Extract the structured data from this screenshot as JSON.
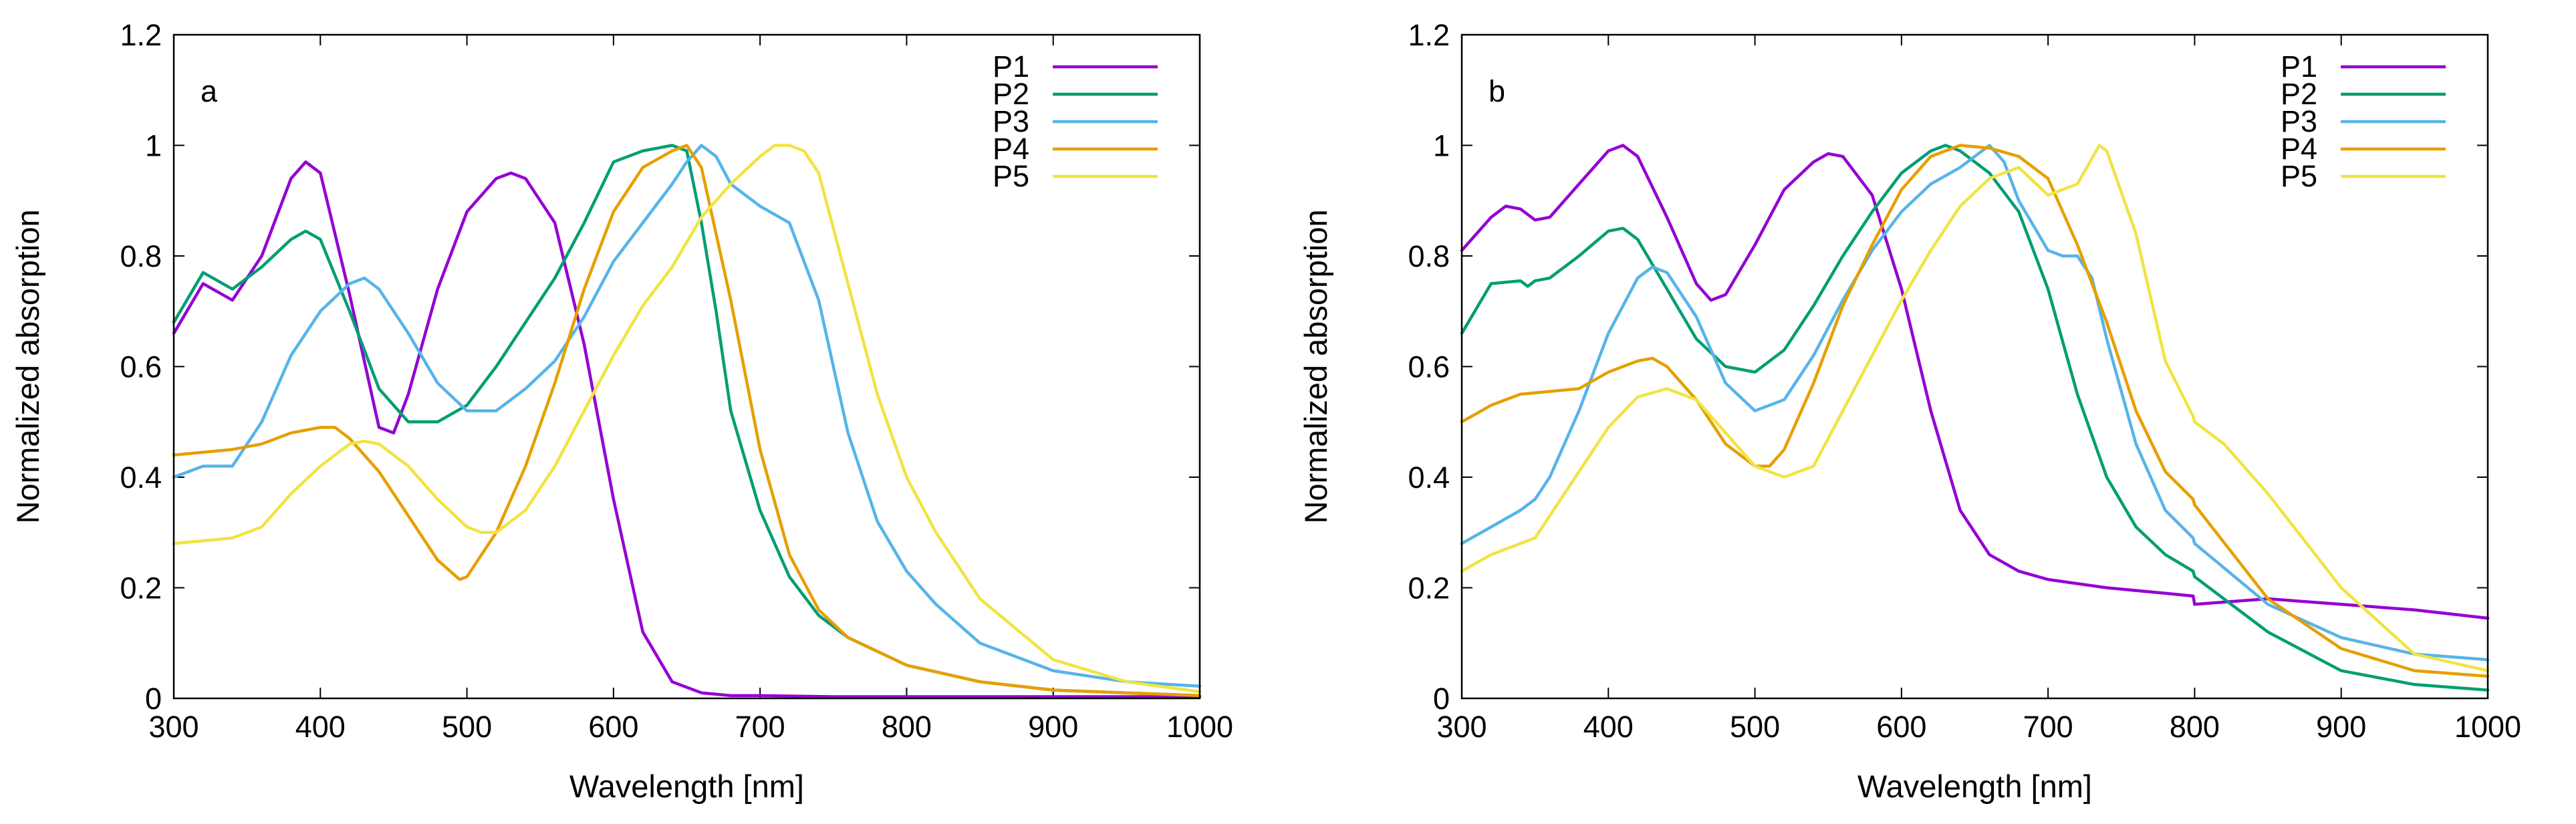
{
  "chart_data": [
    {
      "type": "line",
      "panel_label": "a",
      "xlabel": "Wavelength [nm]",
      "ylabel": "Normalized absorption",
      "xlim": [
        300,
        1000
      ],
      "ylim": [
        0,
        1.2
      ],
      "xticks": [
        "300",
        "400",
        "500",
        "600",
        "700",
        "800",
        "900",
        "1000"
      ],
      "yticks": [
        "0",
        "0.2",
        "0.4",
        "0.6",
        "0.8",
        "1",
        "1.2"
      ],
      "legend_position": "top-right",
      "series": [
        {
          "name": "P1",
          "color": "#9400d3",
          "x": [
            300,
            320,
            340,
            360,
            380,
            390,
            400,
            420,
            440,
            450,
            460,
            480,
            500,
            520,
            530,
            540,
            560,
            580,
            600,
            620,
            640,
            660,
            680,
            700,
            750,
            800,
            900,
            1000
          ],
          "y": [
            0.66,
            0.75,
            0.72,
            0.8,
            0.94,
            0.97,
            0.95,
            0.73,
            0.49,
            0.48,
            0.55,
            0.74,
            0.88,
            0.94,
            0.95,
            0.94,
            0.86,
            0.64,
            0.36,
            0.12,
            0.03,
            0.01,
            0.005,
            0.005,
            0.003,
            0.003,
            0.003,
            0.003
          ]
        },
        {
          "name": "P2",
          "color": "#009e73",
          "x": [
            300,
            320,
            340,
            360,
            380,
            390,
            400,
            420,
            440,
            460,
            480,
            500,
            520,
            540,
            560,
            580,
            600,
            620,
            640,
            650,
            660,
            670,
            680,
            700,
            720,
            740,
            760,
            800,
            850,
            900,
            1000
          ],
          "y": [
            0.68,
            0.77,
            0.74,
            0.78,
            0.83,
            0.845,
            0.83,
            0.7,
            0.56,
            0.5,
            0.5,
            0.53,
            0.6,
            0.68,
            0.76,
            0.86,
            0.97,
            0.99,
            1.0,
            0.99,
            0.86,
            0.7,
            0.52,
            0.34,
            0.22,
            0.15,
            0.11,
            0.06,
            0.03,
            0.015,
            0.005
          ]
        },
        {
          "name": "P3",
          "color": "#56b4e9",
          "x": [
            300,
            320,
            340,
            360,
            380,
            400,
            420,
            430,
            440,
            460,
            480,
            500,
            520,
            540,
            560,
            580,
            600,
            620,
            640,
            650,
            660,
            670,
            680,
            700,
            720,
            740,
            760,
            780,
            800,
            820,
            850,
            900,
            950,
            1000
          ],
          "y": [
            0.4,
            0.42,
            0.42,
            0.5,
            0.62,
            0.7,
            0.75,
            0.76,
            0.74,
            0.66,
            0.57,
            0.52,
            0.52,
            0.56,
            0.61,
            0.69,
            0.79,
            0.86,
            0.93,
            0.97,
            1.0,
            0.98,
            0.93,
            0.89,
            0.86,
            0.72,
            0.48,
            0.32,
            0.23,
            0.17,
            0.1,
            0.05,
            0.03,
            0.022
          ]
        },
        {
          "name": "P4",
          "color": "#e69f00",
          "x": [
            300,
            320,
            340,
            360,
            380,
            400,
            410,
            420,
            440,
            460,
            480,
            495,
            500,
            520,
            540,
            560,
            580,
            600,
            620,
            640,
            650,
            660,
            680,
            700,
            720,
            740,
            760,
            800,
            850,
            900,
            1000
          ],
          "y": [
            0.44,
            0.445,
            0.45,
            0.46,
            0.48,
            0.49,
            0.49,
            0.47,
            0.41,
            0.33,
            0.25,
            0.215,
            0.22,
            0.3,
            0.42,
            0.57,
            0.74,
            0.88,
            0.96,
            0.99,
            1.0,
            0.96,
            0.72,
            0.45,
            0.26,
            0.16,
            0.11,
            0.06,
            0.03,
            0.015,
            0.005
          ]
        },
        {
          "name": "P5",
          "color": "#f0e442",
          "x": [
            300,
            320,
            340,
            360,
            380,
            400,
            420,
            430,
            440,
            460,
            480,
            500,
            510,
            520,
            540,
            560,
            580,
            600,
            620,
            640,
            660,
            680,
            700,
            710,
            720,
            730,
            740,
            760,
            780,
            800,
            820,
            850,
            900,
            950,
            1000
          ],
          "y": [
            0.28,
            0.285,
            0.29,
            0.31,
            0.37,
            0.42,
            0.46,
            0.465,
            0.46,
            0.42,
            0.36,
            0.31,
            0.3,
            0.3,
            0.34,
            0.42,
            0.52,
            0.62,
            0.71,
            0.78,
            0.87,
            0.93,
            0.98,
            1.0,
            1.0,
            0.99,
            0.95,
            0.75,
            0.55,
            0.4,
            0.3,
            0.18,
            0.07,
            0.03,
            0.012
          ]
        }
      ]
    },
    {
      "type": "line",
      "panel_label": "b",
      "xlabel": "Wavelength [nm]",
      "ylabel": "Normalized absorption",
      "xlim": [
        300,
        1000
      ],
      "ylim": [
        0,
        1.2
      ],
      "xticks": [
        "300",
        "400",
        "500",
        "600",
        "700",
        "800",
        "900",
        "1000"
      ],
      "yticks": [
        "0",
        "0.2",
        "0.4",
        "0.6",
        "0.8",
        "1",
        "1.2"
      ],
      "legend_position": "top-right",
      "series": [
        {
          "name": "P1",
          "color": "#9400d3",
          "x": [
            300,
            320,
            330,
            340,
            350,
            360,
            380,
            400,
            410,
            420,
            440,
            460,
            470,
            480,
            500,
            520,
            540,
            550,
            560,
            580,
            600,
            620,
            640,
            660,
            680,
            700,
            740,
            780,
            799,
            800,
            850,
            900,
            950,
            1000
          ],
          "y": [
            0.81,
            0.87,
            0.89,
            0.885,
            0.865,
            0.87,
            0.93,
            0.99,
            1.0,
            0.98,
            0.87,
            0.75,
            0.72,
            0.73,
            0.82,
            0.92,
            0.97,
            0.985,
            0.98,
            0.91,
            0.74,
            0.52,
            0.34,
            0.26,
            0.23,
            0.215,
            0.2,
            0.19,
            0.185,
            0.17,
            0.18,
            0.17,
            0.16,
            0.145
          ]
        },
        {
          "name": "P2",
          "color": "#009e73",
          "x": [
            300,
            320,
            340,
            345,
            350,
            360,
            380,
            400,
            410,
            420,
            440,
            460,
            480,
            500,
            520,
            540,
            560,
            580,
            600,
            620,
            630,
            640,
            660,
            680,
            700,
            720,
            740,
            760,
            780,
            799,
            800,
            850,
            900,
            950,
            1000
          ],
          "y": [
            0.66,
            0.75,
            0.755,
            0.745,
            0.755,
            0.76,
            0.8,
            0.845,
            0.85,
            0.83,
            0.74,
            0.65,
            0.6,
            0.59,
            0.63,
            0.71,
            0.8,
            0.88,
            0.95,
            0.99,
            1.0,
            0.99,
            0.95,
            0.88,
            0.74,
            0.55,
            0.4,
            0.31,
            0.26,
            0.23,
            0.22,
            0.12,
            0.05,
            0.025,
            0.015
          ]
        },
        {
          "name": "P3",
          "color": "#56b4e9",
          "x": [
            300,
            320,
            340,
            350,
            360,
            380,
            400,
            420,
            430,
            440,
            460,
            480,
            500,
            520,
            540,
            560,
            580,
            600,
            620,
            640,
            650,
            660,
            670,
            680,
            700,
            710,
            720,
            730,
            740,
            760,
            780,
            799,
            800,
            850,
            900,
            950,
            1000
          ],
          "y": [
            0.28,
            0.31,
            0.34,
            0.36,
            0.4,
            0.52,
            0.66,
            0.76,
            0.78,
            0.77,
            0.69,
            0.57,
            0.52,
            0.54,
            0.62,
            0.72,
            0.81,
            0.88,
            0.93,
            0.96,
            0.98,
            1.0,
            0.97,
            0.9,
            0.81,
            0.8,
            0.8,
            0.76,
            0.65,
            0.46,
            0.34,
            0.29,
            0.28,
            0.17,
            0.11,
            0.08,
            0.07
          ]
        },
        {
          "name": "P4",
          "color": "#e69f00",
          "x": [
            300,
            320,
            340,
            360,
            380,
            400,
            420,
            430,
            440,
            460,
            480,
            500,
            510,
            520,
            540,
            560,
            580,
            600,
            620,
            640,
            660,
            680,
            700,
            720,
            740,
            760,
            780,
            799,
            800,
            850,
            900,
            950,
            1000
          ],
          "y": [
            0.5,
            0.53,
            0.55,
            0.555,
            0.56,
            0.59,
            0.61,
            0.615,
            0.6,
            0.54,
            0.46,
            0.42,
            0.42,
            0.45,
            0.57,
            0.71,
            0.82,
            0.92,
            0.98,
            1.0,
            0.995,
            0.98,
            0.94,
            0.82,
            0.68,
            0.52,
            0.41,
            0.36,
            0.35,
            0.18,
            0.09,
            0.05,
            0.04
          ]
        },
        {
          "name": "P5",
          "color": "#f0e442",
          "x": [
            300,
            320,
            340,
            350,
            360,
            380,
            400,
            420,
            440,
            460,
            480,
            500,
            520,
            540,
            560,
            580,
            600,
            620,
            640,
            660,
            680,
            700,
            720,
            735,
            740,
            760,
            780,
            799,
            800,
            820,
            850,
            900,
            950,
            1000
          ],
          "y": [
            0.23,
            0.26,
            0.28,
            0.29,
            0.33,
            0.41,
            0.49,
            0.545,
            0.56,
            0.54,
            0.48,
            0.42,
            0.4,
            0.42,
            0.52,
            0.62,
            0.72,
            0.81,
            0.89,
            0.94,
            0.96,
            0.91,
            0.93,
            1.0,
            0.99,
            0.84,
            0.61,
            0.51,
            0.5,
            0.46,
            0.37,
            0.2,
            0.08,
            0.05
          ]
        }
      ]
    }
  ]
}
